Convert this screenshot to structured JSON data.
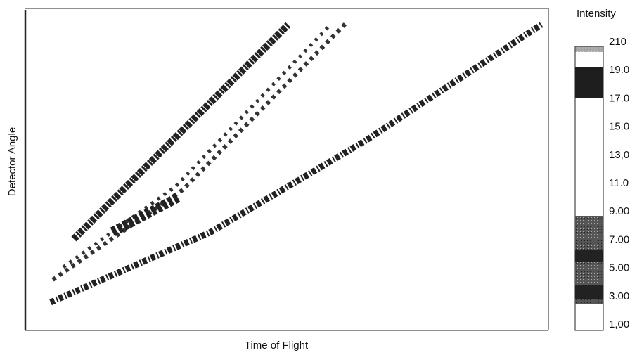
{
  "figure": {
    "x_label": "Time of Flight",
    "y_label": "Detector Angle",
    "colorbar": {
      "title": "Intensity",
      "labels": [
        "210",
        "19.0",
        "17.0",
        "15.0",
        "13,0",
        "11.0",
        "9.00",
        "7.00",
        "5.00",
        "3.00",
        "1,00"
      ]
    }
  }
}
